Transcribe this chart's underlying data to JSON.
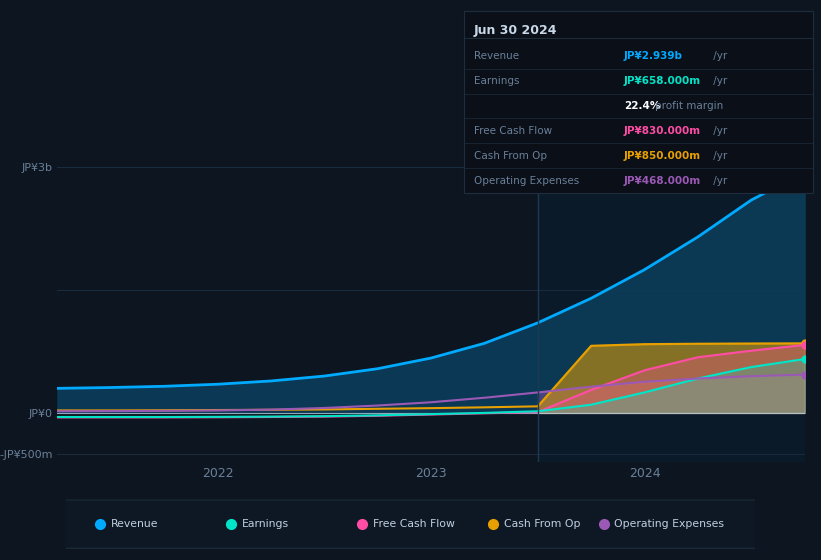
{
  "background_color": "#0d1520",
  "plot_bg_color": "#0d1520",
  "fig_width": 8.21,
  "fig_height": 5.6,
  "dpi": 100,
  "info_box": {
    "title": "Jun 30 2024",
    "bg_color": "#0a0f18",
    "border_color": "#1e2d3d",
    "title_color": "#c8d8e8",
    "label_color": "#6a8099",
    "rows": [
      {
        "label": "Revenue",
        "value": "JP¥2.939b",
        "suffix": " /yr",
        "value_color": "#00aaff"
      },
      {
        "label": "Earnings",
        "value": "JP¥658.000m",
        "suffix": " /yr",
        "value_color": "#00e5c8"
      },
      {
        "label": "",
        "value": "22.4%",
        "suffix": " profit margin",
        "value_color": "#ffffff"
      },
      {
        "label": "Free Cash Flow",
        "value": "JP¥830.000m",
        "suffix": " /yr",
        "value_color": "#ff4da6"
      },
      {
        "label": "Cash From Op",
        "value": "JP¥850.000m",
        "suffix": " /yr",
        "value_color": "#e8a000"
      },
      {
        "label": "Operating Expenses",
        "value": "JP¥468.000m",
        "suffix": " /yr",
        "value_color": "#9b59b6"
      }
    ]
  },
  "ylim": [
    -600,
    3300
  ],
  "xlim_start": 2021.25,
  "xlim_end": 2024.75,
  "yticks": [
    {
      "value": 3000,
      "label": "JP¥3b"
    },
    {
      "value": 1500,
      "label": ""
    },
    {
      "value": 0,
      "label": "JP¥0"
    },
    {
      "value": -500,
      "label": "-JP¥500m"
    }
  ],
  "xticks": [
    {
      "value": 2022,
      "label": "2022"
    },
    {
      "value": 2023,
      "label": "2023"
    },
    {
      "value": 2024,
      "label": "2024"
    }
  ],
  "divider_x": 2023.5,
  "revenue_x": [
    2021.25,
    2021.5,
    2021.75,
    2022.0,
    2022.25,
    2022.5,
    2022.75,
    2023.0,
    2023.25,
    2023.5,
    2023.75,
    2024.0,
    2024.25,
    2024.5,
    2024.75
  ],
  "revenue_y": [
    300,
    310,
    325,
    350,
    390,
    450,
    540,
    670,
    850,
    1100,
    1400,
    1750,
    2150,
    2600,
    2939
  ],
  "revenue_color": "#00aaff",
  "revenue_fill": "#0b3d5a",
  "earnings_x": [
    2021.25,
    2021.5,
    2021.75,
    2022.0,
    2022.25,
    2022.5,
    2022.75,
    2023.0,
    2023.25,
    2023.5,
    2023.75,
    2024.0,
    2024.25,
    2024.5,
    2024.75
  ],
  "earnings_y": [
    -50,
    -50,
    -50,
    -48,
    -45,
    -40,
    -30,
    -15,
    0,
    20,
    100,
    250,
    420,
    560,
    658
  ],
  "earnings_color": "#00e5c8",
  "earnings_fill": "#00e5c8",
  "fcf_x": [
    2021.25,
    2021.5,
    2021.75,
    2022.0,
    2022.25,
    2022.5,
    2022.75,
    2023.0,
    2023.25,
    2023.5,
    2023.75,
    2024.0,
    2024.25,
    2024.5,
    2024.75
  ],
  "fcf_y": [
    -55,
    -55,
    -55,
    -53,
    -50,
    -45,
    -35,
    -20,
    -5,
    10,
    280,
    520,
    680,
    760,
    830
  ],
  "fcf_color": "#ff4da6",
  "fcf_fill": "#ff4da6",
  "cashop_x": [
    2021.25,
    2021.5,
    2021.75,
    2022.0,
    2022.25,
    2022.5,
    2022.75,
    2023.0,
    2023.25,
    2023.5,
    2023.75,
    2024.0,
    2024.25,
    2024.5,
    2024.75
  ],
  "cashop_y": [
    30,
    30,
    32,
    35,
    38,
    42,
    50,
    58,
    68,
    80,
    820,
    840,
    845,
    848,
    850
  ],
  "cashop_color": "#e8a000",
  "cashop_fill": "#e8a000",
  "opex_x": [
    2021.25,
    2021.5,
    2021.75,
    2022.0,
    2022.25,
    2022.5,
    2022.75,
    2023.0,
    2023.25,
    2023.5,
    2023.75,
    2024.0,
    2024.25,
    2024.5,
    2024.75
  ],
  "opex_y": [
    20,
    22,
    25,
    30,
    40,
    60,
    90,
    130,
    185,
    250,
    320,
    380,
    420,
    448,
    468
  ],
  "opex_color": "#9b59b6",
  "opex_fill": "#9b59b6",
  "grid_color": "#1a2d40",
  "tick_color": "#6a8099",
  "zero_line_color": "#c8d8e8",
  "legend_items": [
    {
      "label": "Revenue",
      "color": "#00aaff"
    },
    {
      "label": "Earnings",
      "color": "#00e5c8"
    },
    {
      "label": "Free Cash Flow",
      "color": "#ff4da6"
    },
    {
      "label": "Cash From Op",
      "color": "#e8a000"
    },
    {
      "label": "Operating Expenses",
      "color": "#9b59b6"
    }
  ]
}
